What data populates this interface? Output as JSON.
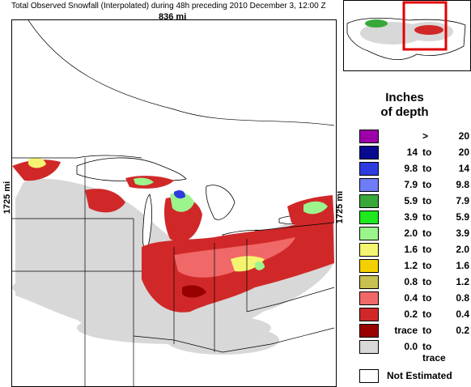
{
  "header": {
    "title": "Total Observed Snowfall (Interpolated) during 48h preceding 2010 December 3, 12:00 Z",
    "width_label": "836 mi",
    "height_label_left": "1725 mi",
    "height_label_right": "1725 mi"
  },
  "legend": {
    "title_line1": "Inches",
    "title_line2": "of depth",
    "entries": [
      {
        "low": "",
        "sep": ">",
        "high": "20",
        "color": "#9c00a8"
      },
      {
        "low": "14",
        "sep": "to",
        "high": "20",
        "color": "#0a0a90"
      },
      {
        "low": "9.8",
        "sep": "to",
        "high": "14",
        "color": "#2c3ce0"
      },
      {
        "low": "7.9",
        "sep": "to",
        "high": "9.8",
        "color": "#6f7cf8"
      },
      {
        "low": "5.9",
        "sep": "to",
        "high": "7.9",
        "color": "#38a838"
      },
      {
        "low": "3.9",
        "sep": "to",
        "high": "5.9",
        "color": "#1ee81e"
      },
      {
        "low": "2.0",
        "sep": "to",
        "high": "3.9",
        "color": "#9cf48c"
      },
      {
        "low": "1.6",
        "sep": "to",
        "high": "2.0",
        "color": "#f4f470"
      },
      {
        "low": "1.2",
        "sep": "to",
        "high": "1.6",
        "color": "#f4d000"
      },
      {
        "low": "0.8",
        "sep": "to",
        "high": "1.2",
        "color": "#c8c050"
      },
      {
        "low": "0.4",
        "sep": "to",
        "high": "0.8",
        "color": "#f06868"
      },
      {
        "low": "0.2",
        "sep": "to",
        "high": "0.4",
        "color": "#d02828"
      },
      {
        "low": "trace",
        "sep": "to",
        "high": "0.2",
        "color": "#980000"
      },
      {
        "low": "0.0",
        "sep": "to trace",
        "high": "",
        "color": "#d8d8d8"
      }
    ],
    "not_estimated": "Not Estimated"
  },
  "colors": {
    "land": "#ffffff",
    "no_snow": "#d8d8d8",
    "boundary": "#000000",
    "inset_highlight": "#e00000"
  }
}
